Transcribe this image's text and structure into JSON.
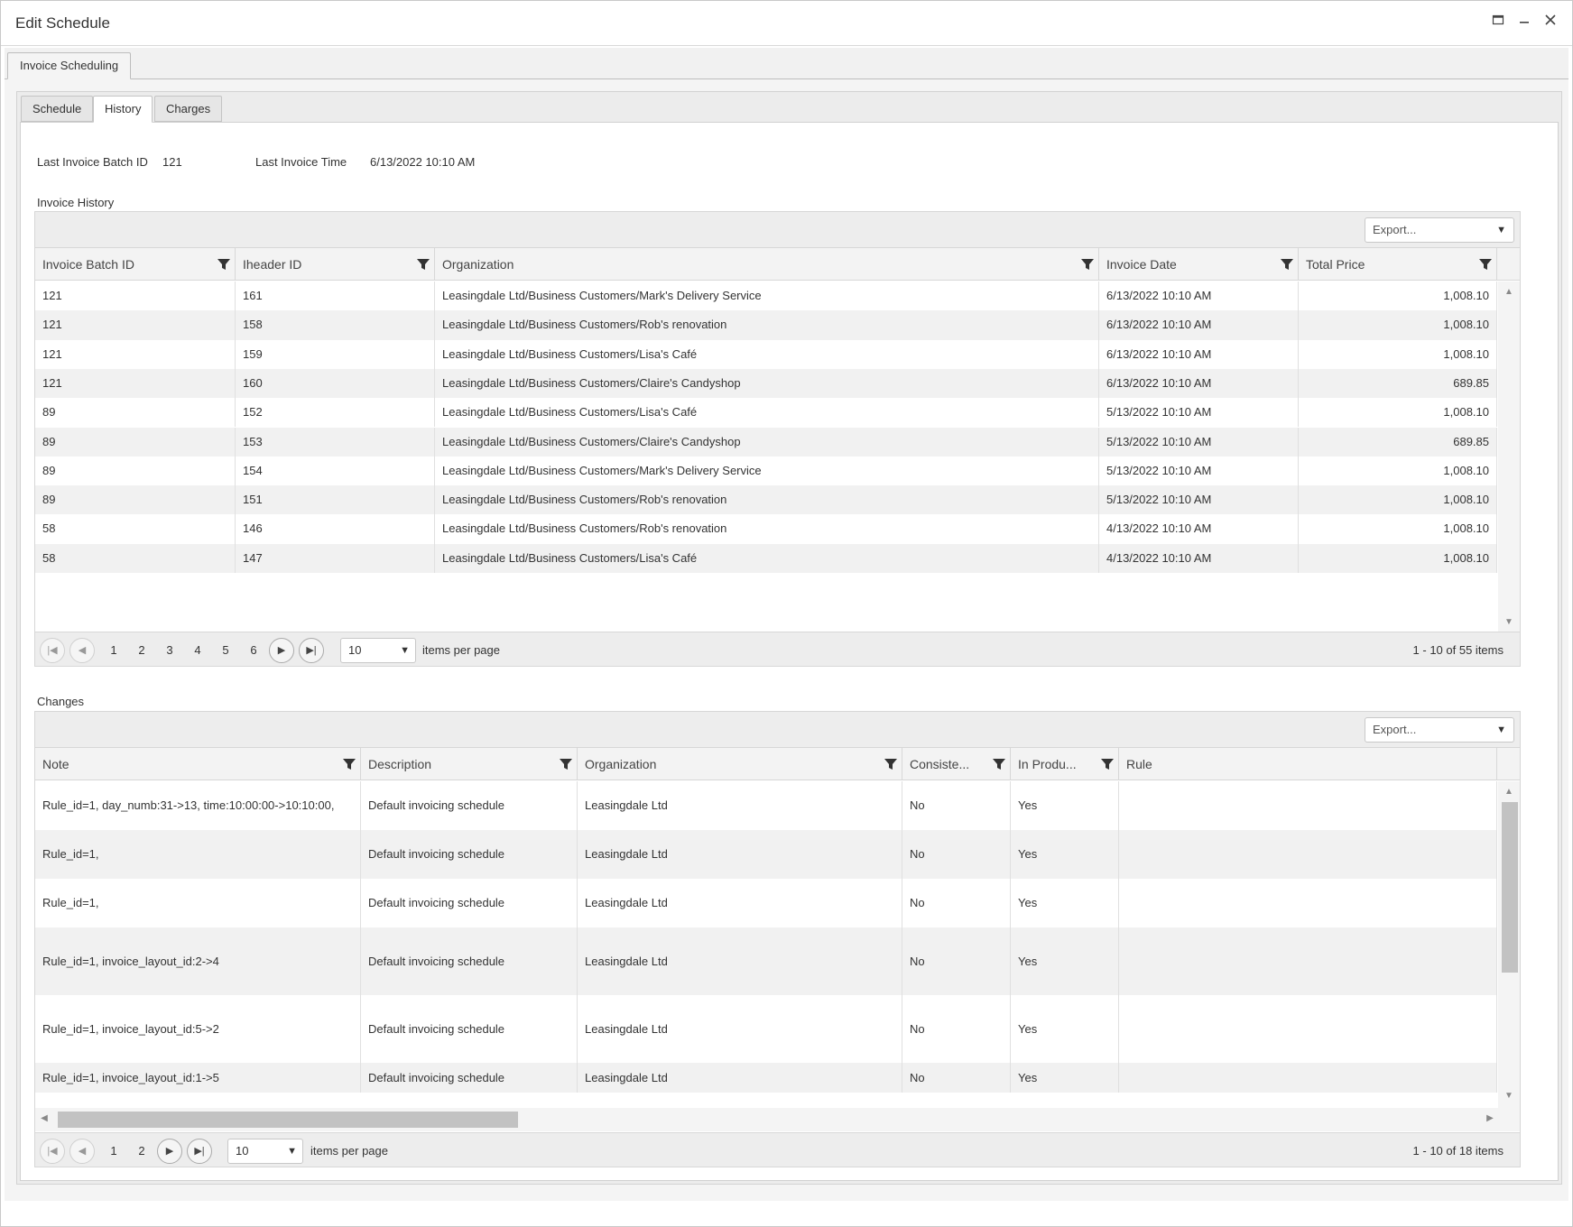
{
  "window": {
    "title": "Edit Schedule"
  },
  "outer_tab": {
    "label": "Invoice Scheduling"
  },
  "inner_tabs": [
    {
      "label": "Schedule",
      "active": false
    },
    {
      "label": "History",
      "active": true
    },
    {
      "label": "Charges",
      "active": false
    }
  ],
  "summary": {
    "last_batch_label": "Last Invoice Batch ID",
    "last_batch_value": "121",
    "last_time_label": "Last Invoice Time",
    "last_time_value": "6/13/2022 10:10 AM"
  },
  "invoice_history": {
    "section_label": "Invoice History",
    "export_label": "Export...",
    "columns": [
      "Invoice Batch ID",
      "Iheader ID",
      "Organization",
      "Invoice Date",
      "Total Price"
    ],
    "rows": [
      [
        "121",
        "161",
        "Leasingdale Ltd/Business Customers/Mark's Delivery Service",
        "6/13/2022 10:10 AM",
        "1,008.10"
      ],
      [
        "121",
        "158",
        "Leasingdale Ltd/Business Customers/Rob's renovation",
        "6/13/2022 10:10 AM",
        "1,008.10"
      ],
      [
        "121",
        "159",
        "Leasingdale Ltd/Business Customers/Lisa's Café",
        "6/13/2022 10:10 AM",
        "1,008.10"
      ],
      [
        "121",
        "160",
        "Leasingdale Ltd/Business Customers/Claire's Candyshop",
        "6/13/2022 10:10 AM",
        "689.85"
      ],
      [
        "89",
        "152",
        "Leasingdale Ltd/Business Customers/Lisa's Café",
        "5/13/2022 10:10 AM",
        "1,008.10"
      ],
      [
        "89",
        "153",
        "Leasingdale Ltd/Business Customers/Claire's Candyshop",
        "5/13/2022 10:10 AM",
        "689.85"
      ],
      [
        "89",
        "154",
        "Leasingdale Ltd/Business Customers/Mark's Delivery Service",
        "5/13/2022 10:10 AM",
        "1,008.10"
      ],
      [
        "89",
        "151",
        "Leasingdale Ltd/Business Customers/Rob's renovation",
        "5/13/2022 10:10 AM",
        "1,008.10"
      ],
      [
        "58",
        "146",
        "Leasingdale Ltd/Business Customers/Rob's renovation",
        "4/13/2022 10:10 AM",
        "1,008.10"
      ],
      [
        "58",
        "147",
        "Leasingdale Ltd/Business Customers/Lisa's Café",
        "4/13/2022 10:10 AM",
        "1,008.10"
      ]
    ],
    "pager": {
      "pages": [
        "1",
        "2",
        "3",
        "4",
        "5",
        "6"
      ],
      "page_size": "10",
      "items_per_page_label": "items per page",
      "info": "1 - 10 of 55 items"
    }
  },
  "changes": {
    "section_label": "Changes",
    "export_label": "Export...",
    "columns": [
      "Note",
      "Description",
      "Organization",
      "Consiste...",
      "In Produ...",
      "Rule"
    ],
    "rows": [
      [
        "Rule_id=1, day_numb:31->13, time:10:00:00->10:10:00,",
        "Default invoicing schedule",
        "Leasingdale Ltd",
        "No",
        "Yes",
        ""
      ],
      [
        "Rule_id=1,",
        "Default invoicing schedule",
        "Leasingdale Ltd",
        "No",
        "Yes",
        ""
      ],
      [
        "Rule_id=1,",
        "Default invoicing schedule",
        "Leasingdale Ltd",
        "No",
        "Yes",
        ""
      ],
      [
        "Rule_id=1, invoice_layout_id:2->4",
        "Default invoicing schedule",
        "Leasingdale Ltd",
        "No",
        "Yes",
        ""
      ],
      [
        "Rule_id=1, invoice_layout_id:5->2",
        "Default invoicing schedule",
        "Leasingdale Ltd",
        "No",
        "Yes",
        ""
      ],
      [
        "Rule_id=1, invoice_layout_id:1->5",
        "Default invoicing schedule",
        "Leasingdale Ltd",
        "No",
        "Yes",
        ""
      ]
    ],
    "pager": {
      "pages": [
        "1",
        "2"
      ],
      "page_size": "10",
      "items_per_page_label": "items per page",
      "info": "1 - 10 of 18 items"
    }
  },
  "icons": {
    "maximize": "maximize-icon",
    "minimize": "minimize-icon",
    "close": "close-icon",
    "filter": "filter-icon",
    "first": "first-page-icon",
    "prev": "prev-page-icon",
    "next": "next-page-icon",
    "last": "last-page-icon"
  }
}
